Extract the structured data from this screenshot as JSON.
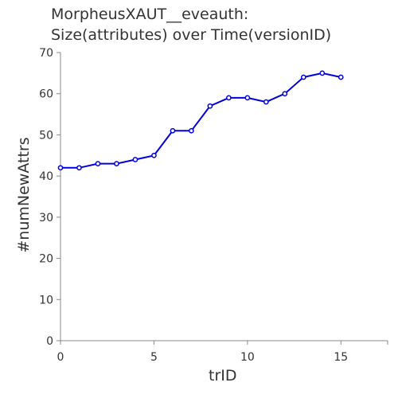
{
  "chart_data": {
    "type": "line",
    "title": [
      "MorpheusXAUT__eveauth:",
      "Size(attributes) over Time(versionID)"
    ],
    "xlabel": "trID",
    "ylabel": "#numNewAttrs",
    "xlim": [
      0,
      17.5
    ],
    "ylim": [
      0,
      70
    ],
    "x_ticks": [
      0,
      5,
      10,
      15
    ],
    "y_ticks": [
      0,
      10,
      20,
      30,
      40,
      50,
      60,
      70
    ],
    "grid": false,
    "line_color": "#0000dd",
    "series": [
      {
        "x": [
          0,
          1,
          2,
          3,
          4,
          5,
          6,
          7,
          8,
          9,
          10,
          11,
          12,
          13,
          14,
          15
        ],
        "values": [
          42,
          42,
          43,
          43,
          44,
          45,
          51,
          51,
          57,
          59,
          59,
          58,
          60,
          64,
          65,
          64
        ]
      }
    ]
  }
}
